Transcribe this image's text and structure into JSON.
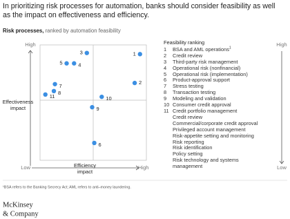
{
  "chart_data": {
    "type": "scatter",
    "title": "In prioritizing risk processes for automation, banks should consider feasibility as well as the impact on effectiveness and efficiency.",
    "subtitle_bold": "Risk processes,",
    "subtitle": "ranked by automation feasibility",
    "x_label": "Efficiency impact",
    "y_label": "Effectiveness impact",
    "xlim": [
      0,
      100
    ],
    "ylim": [
      0,
      100
    ],
    "xticks": [
      {
        "value": 0,
        "label": "Low"
      },
      {
        "value": 100,
        "label": "High"
      }
    ],
    "yticks": [
      {
        "value": 100,
        "label": "High"
      }
    ],
    "color": "#3b8fe3",
    "labels": [
      "1",
      "2",
      "3",
      "4",
      "5",
      "6",
      "7",
      "8",
      "9",
      "10",
      "11"
    ],
    "x": [
      94,
      89,
      44,
      32,
      25,
      51,
      14,
      13,
      49,
      58,
      5
    ],
    "y": [
      92,
      67,
      93,
      84,
      84,
      15,
      66,
      60,
      46,
      55,
      57
    ]
  },
  "ranking": {
    "title": "Feasibility ranking",
    "high": "High",
    "low": "Low",
    "items": [
      {
        "rank": "1",
        "label": "BSA and AML operations",
        "note": "1"
      },
      {
        "rank": "2",
        "label": "Credit review"
      },
      {
        "rank": "3",
        "label": "Third-party risk management"
      },
      {
        "rank": "4",
        "label": "Operational risk (nonfinancial)"
      },
      {
        "rank": "5",
        "label": "Operational risk (implementation)"
      },
      {
        "rank": "6",
        "label": "Product-approval support"
      },
      {
        "rank": "7",
        "label": "Stress testing"
      },
      {
        "rank": "8",
        "label": "Transaction testing"
      },
      {
        "rank": "9",
        "label": "Modeling and validation"
      },
      {
        "rank": "10",
        "label": "Consumer credit approval"
      },
      {
        "rank": "11",
        "label": "Credit portfolio management"
      }
    ],
    "unranked": [
      "Credit review",
      "Commercial/corporate credit approval",
      "Privileged account management",
      "Risk-appetite setting and monitoring",
      "Risk reporting",
      "Risk identification",
      "Policy setting",
      "Risk technology and systems management"
    ]
  },
  "footnote": "¹BSA refers to the Banking Secrecy Act; AML refers to anti–money laundering.",
  "logo": [
    "McKinsey",
    "& Company"
  ]
}
